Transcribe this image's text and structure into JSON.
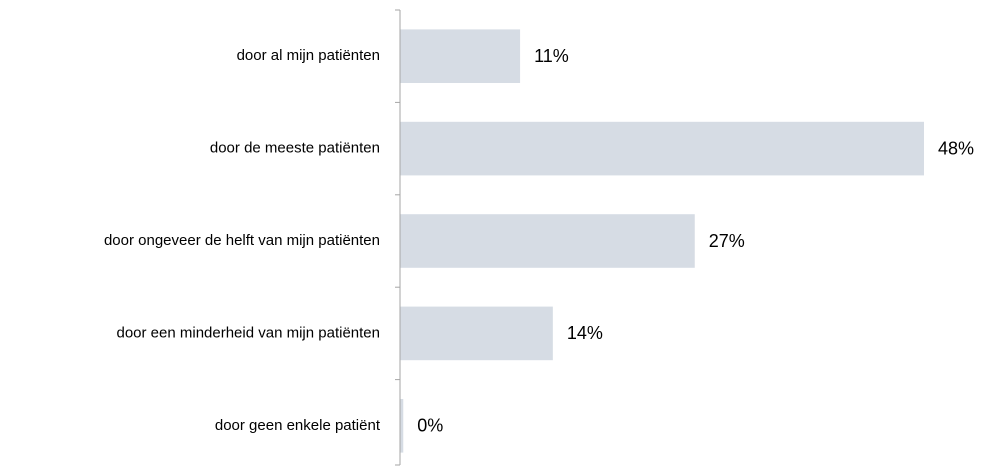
{
  "chart_data": {
    "type": "bar",
    "orientation": "horizontal",
    "categories": [
      "door al mijn patiënten",
      "door de meeste patiënten",
      "door ongeveer de helft van mijn patiënten",
      "door een minderheid van mijn patiënten",
      "door geen enkele patiënt"
    ],
    "values": [
      11,
      48,
      27,
      14,
      0.3
    ],
    "value_labels": [
      "11%",
      "48%",
      "27%",
      "14%",
      "0%"
    ],
    "color": "#d6dce4"
  }
}
